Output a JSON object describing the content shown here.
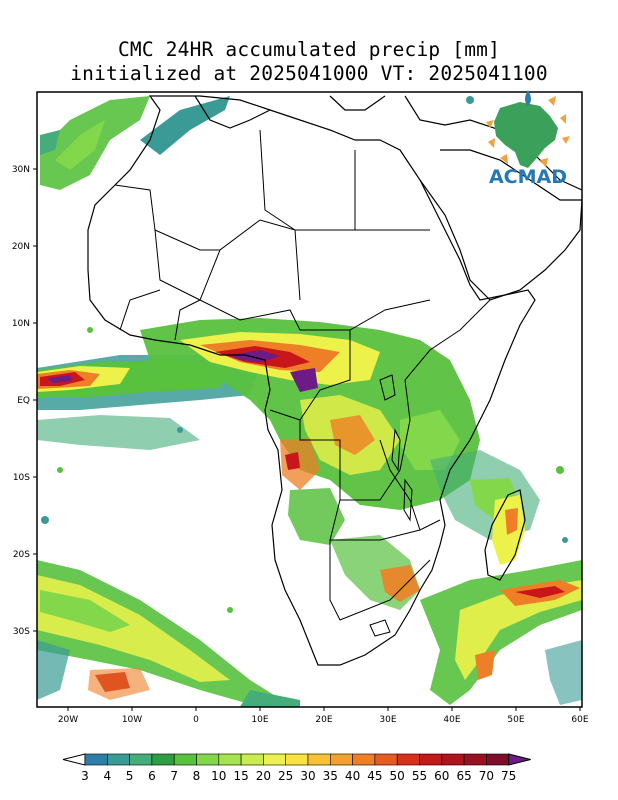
{
  "title_line1": "CMC 24HR accumulated precip [mm]",
  "title_line2": "initialized at 2025041000 VT: 2025041100",
  "logo_text": "ACMAD",
  "lat_ticks": [
    "30N",
    "20N",
    "10N",
    "EQ",
    "10S",
    "20S",
    "30S"
  ],
  "lon_ticks": [
    "20W",
    "10W",
    "0",
    "10E",
    "20E",
    "30E",
    "40E",
    "50E",
    "60E"
  ],
  "colorbar": {
    "labels": [
      "3",
      "4",
      "5",
      "6",
      "7",
      "8",
      "10",
      "15",
      "20",
      "25",
      "30",
      "35",
      "40",
      "45",
      "50",
      "55",
      "60",
      "65",
      "70",
      "75"
    ],
    "colors": [
      "#2e7fa8",
      "#3a9b96",
      "#45ad79",
      "#2f9e43",
      "#58c13e",
      "#82d84a",
      "#a6e44b",
      "#caed4a",
      "#ecf24a",
      "#fbe33a",
      "#f8c22e",
      "#f4a12a",
      "#ee7f26",
      "#e85a22",
      "#dc2c1c",
      "#c8161a",
      "#b3121c",
      "#9a1020",
      "#7e0e2a",
      "#6d1b86"
    ]
  },
  "map": {
    "lon_range": [
      -25,
      60
    ],
    "lat_range": [
      -40,
      40
    ],
    "precip_colors": {
      "light": "#3a9b96",
      "green": "#58c13e",
      "yellow": "#ecf24a",
      "orange": "#ee7f26",
      "red": "#c8161a",
      "purple": "#6d1b86"
    }
  }
}
